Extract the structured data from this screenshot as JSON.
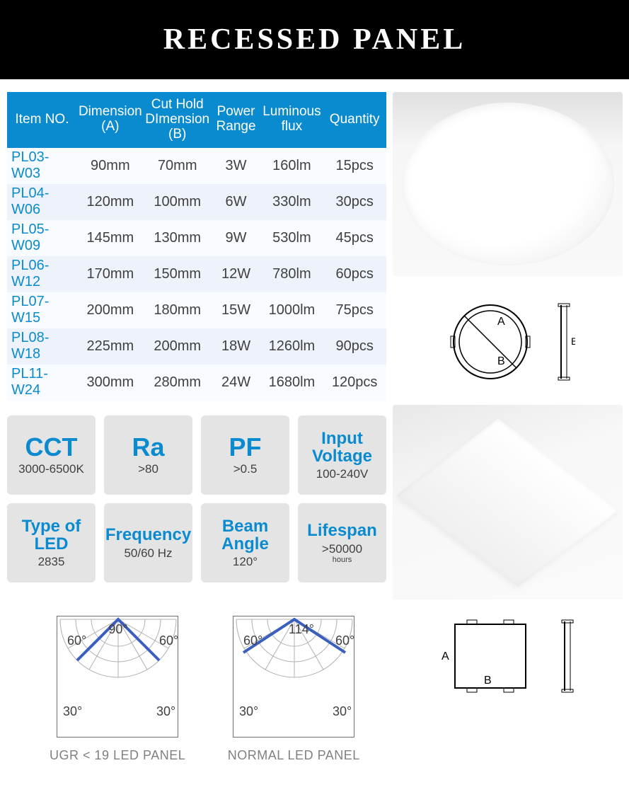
{
  "title": "RECESSED PANEL",
  "colors": {
    "header_bg": "#0b8bcf",
    "header_text": "#ffffff",
    "title_bar_bg": "#000000",
    "itemno": "#0b8bcf",
    "cell_text": "#404040",
    "row_odd": "#f8fbff",
    "row_even": "#eef3fb",
    "tile_bg": "#e4e4e4",
    "tile_accent": "#0b8bcf",
    "caption": "#808080",
    "polar_stroke": "#3a5fbf"
  },
  "table": {
    "columns": [
      "Item NO.",
      "Dimension (A)",
      "Cut Hold DImension (B)",
      "Power Range",
      "Luminous flux",
      "Quantity"
    ],
    "rows": [
      [
        "PL03-W03",
        "90mm",
        "70mm",
        "3W",
        "160lm",
        "15pcs"
      ],
      [
        "PL04-W06",
        "120mm",
        "100mm",
        "6W",
        "330lm",
        "30pcs"
      ],
      [
        "PL05-W09",
        "145mm",
        "130mm",
        "9W",
        "530lm",
        "45pcs"
      ],
      [
        "PL06-W12",
        "170mm",
        "150mm",
        "12W",
        "780lm",
        "60pcs"
      ],
      [
        "PL07-W15",
        "200mm",
        "180mm",
        "15W",
        "1000lm",
        "75pcs"
      ],
      [
        "PL08-W18",
        "225mm",
        "200mm",
        "18W",
        "1260lm",
        "90pcs"
      ],
      [
        "PL11-W24",
        "300mm",
        "280mm",
        "24W",
        "1680lm",
        "120pcs"
      ]
    ]
  },
  "tiles": [
    {
      "big": "CCT",
      "small": "3000-6500K"
    },
    {
      "big": "Ra",
      "small": ">80"
    },
    {
      "big": "PF",
      "small": ">0.5"
    },
    {
      "med": "Input Voltage",
      "small": "100-240V"
    },
    {
      "med": "Type of LED",
      "small": "2835"
    },
    {
      "med": "Frequency",
      "small": "50/60 Hz"
    },
    {
      "med": "Beam Angle",
      "small": "120°"
    },
    {
      "med": "Lifespan",
      "small": ">50000",
      "tiny": "hours"
    }
  ],
  "polar": {
    "left": {
      "angle": "90°",
      "caption": "UGR < 19 LED PANEL",
      "ticks": [
        "60°",
        "60°",
        "30°",
        "30°"
      ]
    },
    "right": {
      "angle": "114°",
      "caption": "NORMAL LED PANEL",
      "ticks": [
        "60°",
        "60°",
        "30°",
        "30°"
      ]
    }
  },
  "round_diagram": {
    "labelA": "A",
    "labelB": "B"
  },
  "square_diagram": {
    "labelA": "A",
    "labelB": "B"
  }
}
